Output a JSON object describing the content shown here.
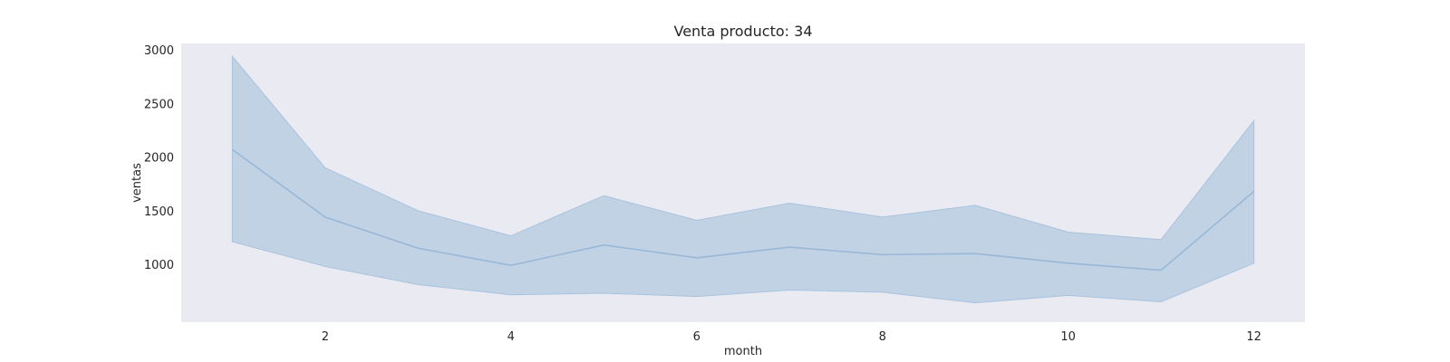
{
  "chart_data": {
    "type": "area",
    "title": "Venta producto: 34",
    "xlabel": "month",
    "ylabel": "ventas",
    "x": [
      1,
      2,
      3,
      4,
      5,
      6,
      7,
      8,
      9,
      10,
      11,
      12
    ],
    "xlim": [
      0.45,
      12.55
    ],
    "ylim": [
      460,
      3060
    ],
    "xticks": [
      2,
      4,
      6,
      8,
      10,
      12
    ],
    "yticks": [
      1000,
      1500,
      2000,
      2500,
      3000
    ],
    "grid": false,
    "legend": "none",
    "series": [
      {
        "mean": [
          2070,
          1440,
          1150,
          990,
          1180,
          1060,
          1160,
          1090,
          1100,
          1010,
          945,
          1680
        ],
        "upper": [
          2940,
          1900,
          1500,
          1265,
          1640,
          1410,
          1570,
          1440,
          1550,
          1300,
          1230,
          2340
        ],
        "lower": [
          1210,
          980,
          810,
          715,
          730,
          700,
          760,
          740,
          640,
          710,
          650,
          1010
        ]
      }
    ],
    "colors": {
      "line": "#98b8d6",
      "band": "#c1d2e4",
      "band_edge": "#a9c3de",
      "plot_bg": "#eaeaf2"
    }
  }
}
